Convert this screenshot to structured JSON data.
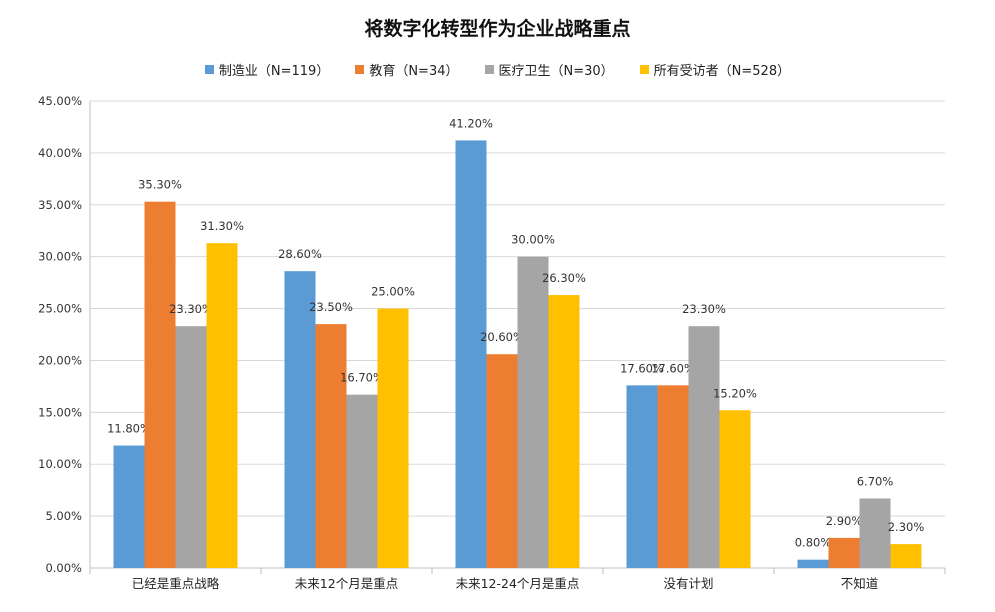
{
  "chart_data": {
    "type": "bar",
    "title": "将数字化转型作为企业战略重点",
    "categories": [
      "已经是重点战略",
      "未来12个月是重点",
      "未来12-24个月是重点",
      "没有计划",
      "不知道"
    ],
    "series": [
      {
        "name": "制造业（N=119）",
        "color": "#5B9BD5",
        "values": [
          11.8,
          28.6,
          41.2,
          17.6,
          0.8
        ],
        "labels": [
          "11.80%",
          "28.60%",
          "41.20%",
          "17.60%",
          "0.80%"
        ]
      },
      {
        "name": "教育（N=34）",
        "color": "#ED7D31",
        "values": [
          35.3,
          23.5,
          20.6,
          17.6,
          2.9
        ],
        "labels": [
          "35.30%",
          "23.50%",
          "20.60%",
          "17.60%",
          "2.90%"
        ]
      },
      {
        "name": "医疗卫生（N=30）",
        "color": "#A5A5A5",
        "values": [
          23.3,
          16.7,
          30.0,
          23.3,
          6.7
        ],
        "labels": [
          "23.30%",
          "16.70%",
          "30.00%",
          "23.30%",
          "6.70%"
        ]
      },
      {
        "name": "所有受访者（N=528）",
        "color": "#FFC000",
        "values": [
          31.3,
          25.0,
          26.3,
          15.2,
          2.3
        ],
        "labels": [
          "31.30%",
          "25.00%",
          "26.30%",
          "15.20%",
          "2.30%"
        ]
      }
    ],
    "ylim": [
      0,
      45
    ],
    "yticks": [
      "0.00%",
      "5.00%",
      "10.00%",
      "15.00%",
      "20.00%",
      "25.00%",
      "30.00%",
      "35.00%",
      "40.00%",
      "45.00%"
    ],
    "grid": true,
    "legend": "top"
  }
}
